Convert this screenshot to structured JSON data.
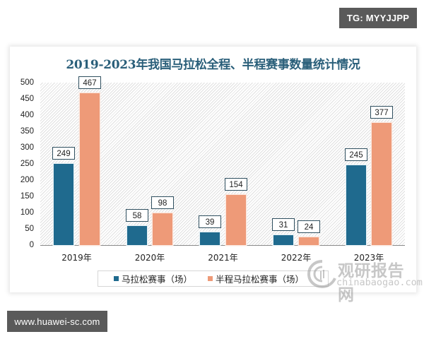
{
  "badges": {
    "top_right": "TG: MYYJJPP",
    "bottom_left": "www.huawei-sc.com"
  },
  "watermark": {
    "name_cn": "观研报告网",
    "name_en": "chinabaogao.com"
  },
  "colors": {
    "series_marathon": "#1f6a8e",
    "series_half_marathon": "#ee9a78",
    "title": "#2a5f7a"
  },
  "chart_data": {
    "type": "bar",
    "title": "2019-2023年我国马拉松全程、半程赛事数量统计情况",
    "xlabel": "",
    "ylabel": "",
    "categories": [
      "2019年",
      "2020年",
      "2021年",
      "2022年",
      "2023年"
    ],
    "series": [
      {
        "name": "马拉松赛事（场）",
        "values": [
          249,
          58,
          39,
          31,
          245
        ],
        "color": "#1f6a8e"
      },
      {
        "name": "半程马拉松赛事（场）",
        "values": [
          467,
          98,
          154,
          24,
          377
        ],
        "color": "#ee9a78"
      }
    ],
    "ylim": [
      0,
      500
    ],
    "yticks": [
      "0",
      "50",
      "100",
      "150",
      "200",
      "250",
      "300",
      "350",
      "400",
      "450",
      "500"
    ],
    "grid": false,
    "data_labels": true,
    "legend_position": "bottom",
    "plot_background": "diagonal-hatch"
  }
}
